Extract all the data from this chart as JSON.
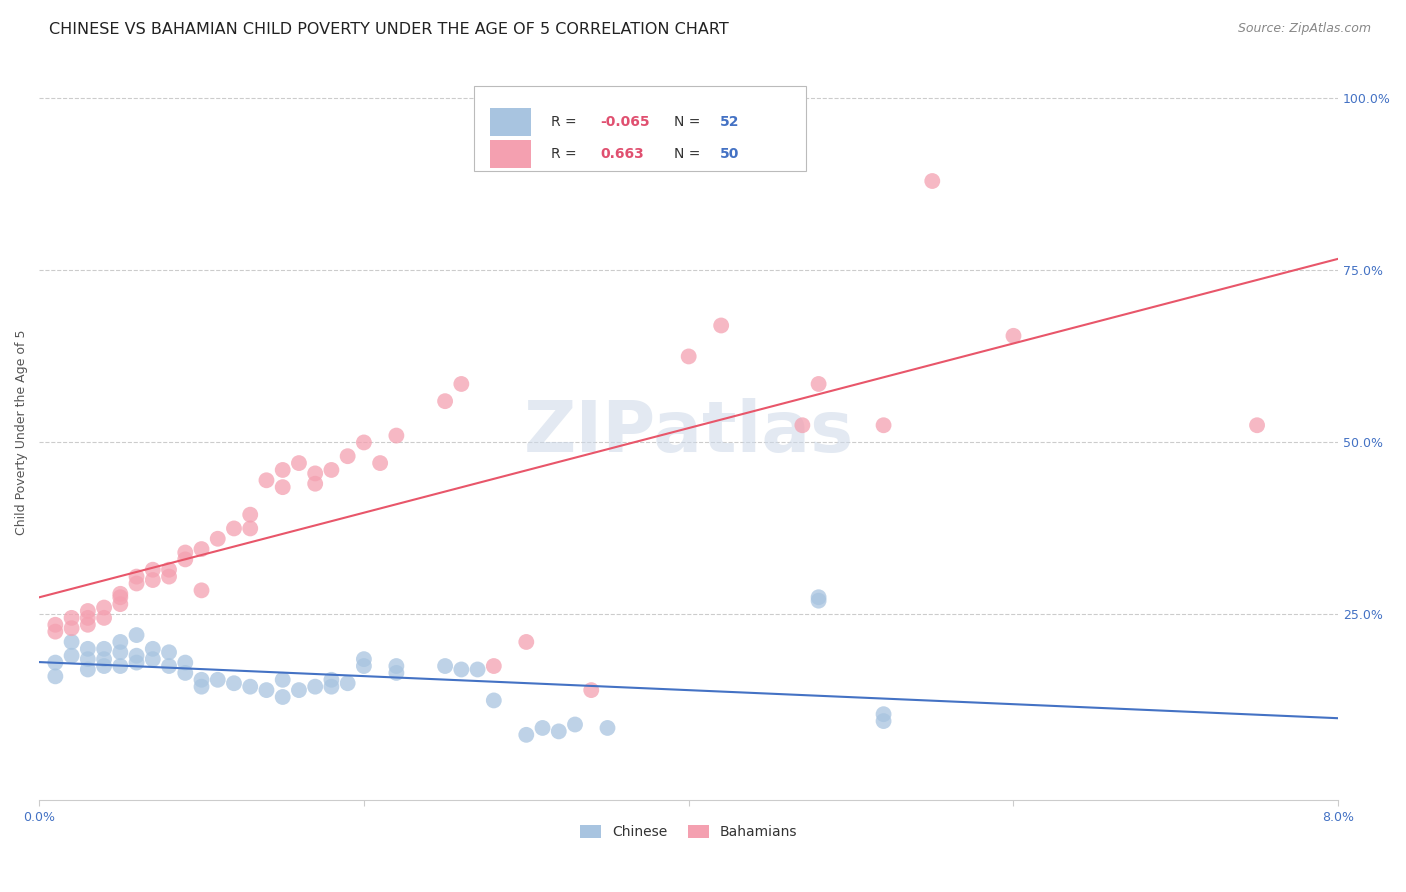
{
  "title": "CHINESE VS BAHAMIAN CHILD POVERTY UNDER THE AGE OF 5 CORRELATION CHART",
  "source": "Source: ZipAtlas.com",
  "ylabel": "Child Poverty Under the Age of 5",
  "xlim": [
    0.0,
    0.08
  ],
  "ylim": [
    -0.02,
    1.05
  ],
  "xticks": [
    0.0,
    0.02,
    0.04,
    0.06,
    0.08
  ],
  "xtick_labels": [
    "0.0%",
    "",
    "",
    "",
    "8.0%"
  ],
  "yticks_right": [
    0.25,
    0.5,
    0.75,
    1.0
  ],
  "ytick_labels_right": [
    "25.0%",
    "50.0%",
    "75.0%",
    "100.0%"
  ],
  "watermark": "ZIPatlas",
  "legend_R1": "-0.065",
  "legend_N1": "52",
  "legend_R2": "0.663",
  "legend_N2": "50",
  "chinese_scatter": [
    [
      0.001,
      0.18
    ],
    [
      0.001,
      0.16
    ],
    [
      0.002,
      0.19
    ],
    [
      0.002,
      0.21
    ],
    [
      0.003,
      0.2
    ],
    [
      0.003,
      0.185
    ],
    [
      0.003,
      0.17
    ],
    [
      0.004,
      0.2
    ],
    [
      0.004,
      0.185
    ],
    [
      0.004,
      0.175
    ],
    [
      0.005,
      0.21
    ],
    [
      0.005,
      0.195
    ],
    [
      0.005,
      0.175
    ],
    [
      0.006,
      0.22
    ],
    [
      0.006,
      0.19
    ],
    [
      0.006,
      0.18
    ],
    [
      0.007,
      0.2
    ],
    [
      0.007,
      0.185
    ],
    [
      0.008,
      0.195
    ],
    [
      0.008,
      0.175
    ],
    [
      0.009,
      0.18
    ],
    [
      0.009,
      0.165
    ],
    [
      0.01,
      0.155
    ],
    [
      0.01,
      0.145
    ],
    [
      0.011,
      0.155
    ],
    [
      0.012,
      0.15
    ],
    [
      0.013,
      0.145
    ],
    [
      0.014,
      0.14
    ],
    [
      0.015,
      0.155
    ],
    [
      0.015,
      0.13
    ],
    [
      0.016,
      0.14
    ],
    [
      0.017,
      0.145
    ],
    [
      0.018,
      0.155
    ],
    [
      0.018,
      0.145
    ],
    [
      0.019,
      0.15
    ],
    [
      0.02,
      0.185
    ],
    [
      0.02,
      0.175
    ],
    [
      0.022,
      0.175
    ],
    [
      0.022,
      0.165
    ],
    [
      0.025,
      0.175
    ],
    [
      0.026,
      0.17
    ],
    [
      0.027,
      0.17
    ],
    [
      0.028,
      0.125
    ],
    [
      0.03,
      0.075
    ],
    [
      0.031,
      0.085
    ],
    [
      0.032,
      0.08
    ],
    [
      0.033,
      0.09
    ],
    [
      0.035,
      0.085
    ],
    [
      0.048,
      0.275
    ],
    [
      0.048,
      0.27
    ],
    [
      0.052,
      0.105
    ],
    [
      0.052,
      0.095
    ]
  ],
  "bahamian_scatter": [
    [
      0.001,
      0.225
    ],
    [
      0.001,
      0.235
    ],
    [
      0.002,
      0.23
    ],
    [
      0.002,
      0.245
    ],
    [
      0.003,
      0.235
    ],
    [
      0.003,
      0.255
    ],
    [
      0.003,
      0.245
    ],
    [
      0.004,
      0.26
    ],
    [
      0.004,
      0.245
    ],
    [
      0.005,
      0.275
    ],
    [
      0.005,
      0.265
    ],
    [
      0.005,
      0.28
    ],
    [
      0.006,
      0.295
    ],
    [
      0.006,
      0.305
    ],
    [
      0.007,
      0.315
    ],
    [
      0.007,
      0.3
    ],
    [
      0.008,
      0.315
    ],
    [
      0.008,
      0.305
    ],
    [
      0.009,
      0.34
    ],
    [
      0.009,
      0.33
    ],
    [
      0.01,
      0.345
    ],
    [
      0.01,
      0.285
    ],
    [
      0.011,
      0.36
    ],
    [
      0.012,
      0.375
    ],
    [
      0.013,
      0.375
    ],
    [
      0.013,
      0.395
    ],
    [
      0.014,
      0.445
    ],
    [
      0.015,
      0.46
    ],
    [
      0.015,
      0.435
    ],
    [
      0.016,
      0.47
    ],
    [
      0.017,
      0.44
    ],
    [
      0.017,
      0.455
    ],
    [
      0.018,
      0.46
    ],
    [
      0.019,
      0.48
    ],
    [
      0.02,
      0.5
    ],
    [
      0.021,
      0.47
    ],
    [
      0.022,
      0.51
    ],
    [
      0.025,
      0.56
    ],
    [
      0.026,
      0.585
    ],
    [
      0.028,
      0.175
    ],
    [
      0.03,
      0.21
    ],
    [
      0.034,
      0.14
    ],
    [
      0.04,
      0.625
    ],
    [
      0.042,
      0.67
    ],
    [
      0.047,
      0.525
    ],
    [
      0.048,
      0.585
    ],
    [
      0.052,
      0.525
    ],
    [
      0.055,
      0.88
    ],
    [
      0.06,
      0.655
    ],
    [
      0.075,
      0.525
    ]
  ],
  "chinese_line_color": "#4472c4",
  "bahamian_line_color": "#e8566a",
  "chinese_scatter_color": "#a8c4e0",
  "bahamian_scatter_color": "#f4a0b0",
  "background_color": "#ffffff",
  "title_fontsize": 11.5,
  "axis_label_fontsize": 9,
  "tick_fontsize": 9,
  "source_fontsize": 9
}
